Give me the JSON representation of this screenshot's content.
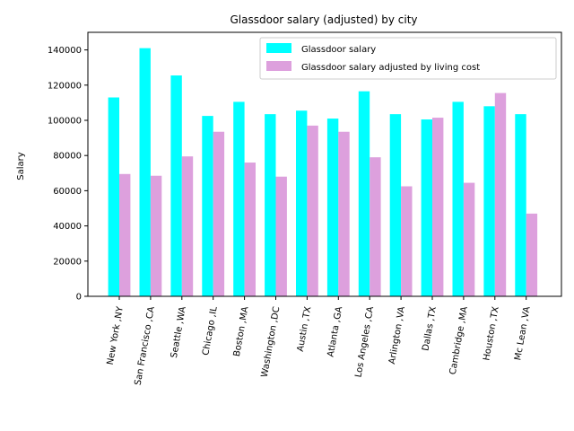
{
  "chart_data": {
    "type": "bar",
    "title": "Glassdoor salary (adjusted) by city",
    "xlabel": "",
    "ylabel": "Salary",
    "ylim": [
      0,
      150000
    ],
    "yticks": [
      0,
      20000,
      40000,
      60000,
      80000,
      100000,
      120000,
      140000
    ],
    "grid": false,
    "legend_position": "top-right",
    "categories": [
      "New York ,NY",
      "San Francisco ,CA",
      "Seattle ,WA",
      "Chicago ,IL",
      "Boston ,MA",
      "Washington ,DC",
      "Austin ,TX",
      "Atlanta ,GA",
      "Los Angeles ,CA",
      "Arlington ,VA",
      "Dallas ,TX",
      "Cambridge ,MA",
      "Houston ,TX",
      "Mc Lean ,VA"
    ],
    "series": [
      {
        "name": "Glassdoor salary",
        "color": "#00ffff",
        "values": [
          113000,
          141000,
          125500,
          102500,
          110500,
          103500,
          105500,
          101000,
          116500,
          103500,
          100500,
          110500,
          108000,
          103500
        ]
      },
      {
        "name": "Glassdoor salary adjusted by living cost",
        "color": "#dda0dd",
        "values": [
          69500,
          68500,
          79500,
          93500,
          76000,
          68000,
          97000,
          93500,
          79000,
          62500,
          101500,
          64500,
          115500,
          47000
        ]
      }
    ]
  }
}
